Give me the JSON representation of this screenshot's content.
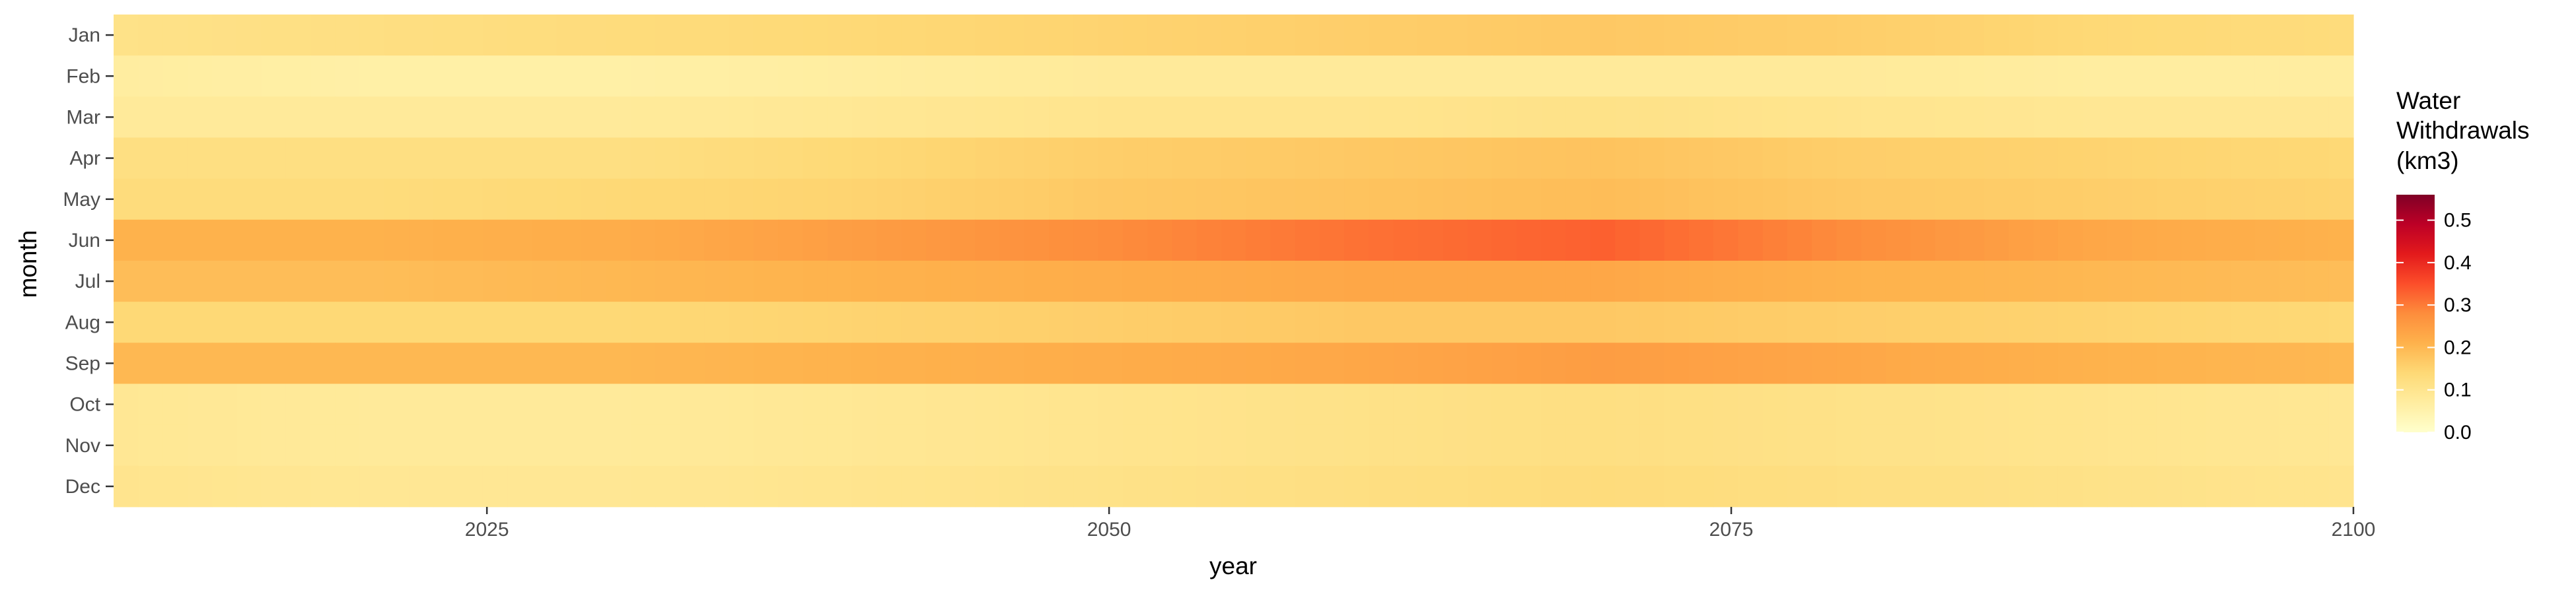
{
  "chart_data": {
    "type": "heatmap",
    "title": "",
    "xlabel": "year",
    "ylabel": "month",
    "x_range": [
      2010,
      2100
    ],
    "x_ticks": [
      2025,
      2050,
      2075,
      2100
    ],
    "x_tick_labels": [
      "2025",
      "2050",
      "2075",
      "2100"
    ],
    "months": [
      "Jan",
      "Feb",
      "Mar",
      "Apr",
      "May",
      "Jun",
      "Jul",
      "Aug",
      "Sep",
      "Oct",
      "Nov",
      "Dec"
    ],
    "year_anchors": [
      2010,
      2020,
      2030,
      2040,
      2050,
      2060,
      2070,
      2080,
      2090,
      2100
    ],
    "values_at_anchors": {
      "Jan": [
        0.11,
        0.12,
        0.13,
        0.14,
        0.15,
        0.16,
        0.17,
        0.16,
        0.14,
        0.13
      ],
      "Feb": [
        0.07,
        0.06,
        0.06,
        0.07,
        0.08,
        0.08,
        0.08,
        0.08,
        0.07,
        0.07
      ],
      "Mar": [
        0.08,
        0.08,
        0.08,
        0.09,
        0.1,
        0.1,
        0.11,
        0.1,
        0.09,
        0.09
      ],
      "Apr": [
        0.12,
        0.12,
        0.12,
        0.14,
        0.16,
        0.17,
        0.18,
        0.16,
        0.15,
        0.14
      ],
      "May": [
        0.13,
        0.13,
        0.14,
        0.15,
        0.17,
        0.18,
        0.19,
        0.17,
        0.16,
        0.15
      ],
      "Jun": [
        0.21,
        0.21,
        0.22,
        0.25,
        0.28,
        0.31,
        0.33,
        0.28,
        0.23,
        0.21
      ],
      "Jul": [
        0.19,
        0.19,
        0.2,
        0.21,
        0.22,
        0.23,
        0.23,
        0.21,
        0.2,
        0.19
      ],
      "Aug": [
        0.14,
        0.14,
        0.14,
        0.15,
        0.16,
        0.17,
        0.17,
        0.16,
        0.15,
        0.14
      ],
      "Sep": [
        0.2,
        0.2,
        0.2,
        0.21,
        0.22,
        0.23,
        0.25,
        0.23,
        0.21,
        0.2
      ],
      "Oct": [
        0.09,
        0.08,
        0.08,
        0.09,
        0.1,
        0.11,
        0.12,
        0.11,
        0.1,
        0.09
      ],
      "Nov": [
        0.09,
        0.08,
        0.08,
        0.09,
        0.1,
        0.11,
        0.12,
        0.11,
        0.1,
        0.09
      ],
      "Dec": [
        0.1,
        0.09,
        0.09,
        0.1,
        0.11,
        0.12,
        0.13,
        0.12,
        0.11,
        0.1
      ]
    },
    "legend": {
      "title_lines": [
        "Water",
        "Withdrawals",
        "(km3)"
      ],
      "range": [
        0.0,
        0.56
      ],
      "ticks": [
        0.0,
        0.1,
        0.2,
        0.3,
        0.4,
        0.5
      ],
      "tick_labels": [
        "0.0",
        "0.1",
        "0.2",
        "0.3",
        "0.4",
        "0.5"
      ],
      "placement": "right"
    },
    "colormap": "YlOrRd",
    "colormap_stops": [
      "#ffffcc",
      "#ffeda0",
      "#fed976",
      "#feb24c",
      "#fd8d3c",
      "#fc4e2a",
      "#e31a1c",
      "#bd0026",
      "#800026"
    ],
    "grid": false
  }
}
